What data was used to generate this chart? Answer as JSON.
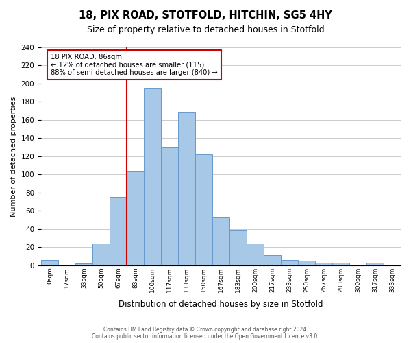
{
  "title": "18, PIX ROAD, STOTFOLD, HITCHIN, SG5 4HY",
  "subtitle": "Size of property relative to detached houses in Stotfold",
  "xlabel": "Distribution of detached houses by size in Stotfold",
  "ylabel": "Number of detached properties",
  "bar_labels": [
    "0sqm",
    "17sqm",
    "33sqm",
    "50sqm",
    "67sqm",
    "83sqm",
    "100sqm",
    "117sqm",
    "133sqm",
    "150sqm",
    "167sqm",
    "183sqm",
    "200sqm",
    "217sqm",
    "233sqm",
    "250sqm",
    "267sqm",
    "283sqm",
    "300sqm",
    "317sqm",
    "333sqm"
  ],
  "bar_heights": [
    6,
    0,
    2,
    24,
    75,
    103,
    195,
    130,
    169,
    122,
    53,
    38,
    24,
    11,
    6,
    5,
    3,
    3,
    0,
    3,
    0
  ],
  "bar_color": "#a8c8e8",
  "bar_edge_color": "#6699cc",
  "reference_line_index": 5,
  "reference_line_color": "#cc0000",
  "annotation_title": "18 PIX ROAD: 86sqm",
  "annotation_line1": "← 12% of detached houses are smaller (115)",
  "annotation_line2": "88% of semi-detached houses are larger (840) →",
  "annotation_box_color": "#ffffff",
  "annotation_box_edge_color": "#cc0000",
  "ylim": [
    0,
    240
  ],
  "yticks": [
    0,
    20,
    40,
    60,
    80,
    100,
    120,
    140,
    160,
    180,
    200,
    220,
    240
  ],
  "footer_line1": "Contains HM Land Registry data © Crown copyright and database right 2024.",
  "footer_line2": "Contains public sector information licensed under the Open Government Licence v3.0.",
  "background_color": "#ffffff",
  "grid_color": "#cccccc"
}
